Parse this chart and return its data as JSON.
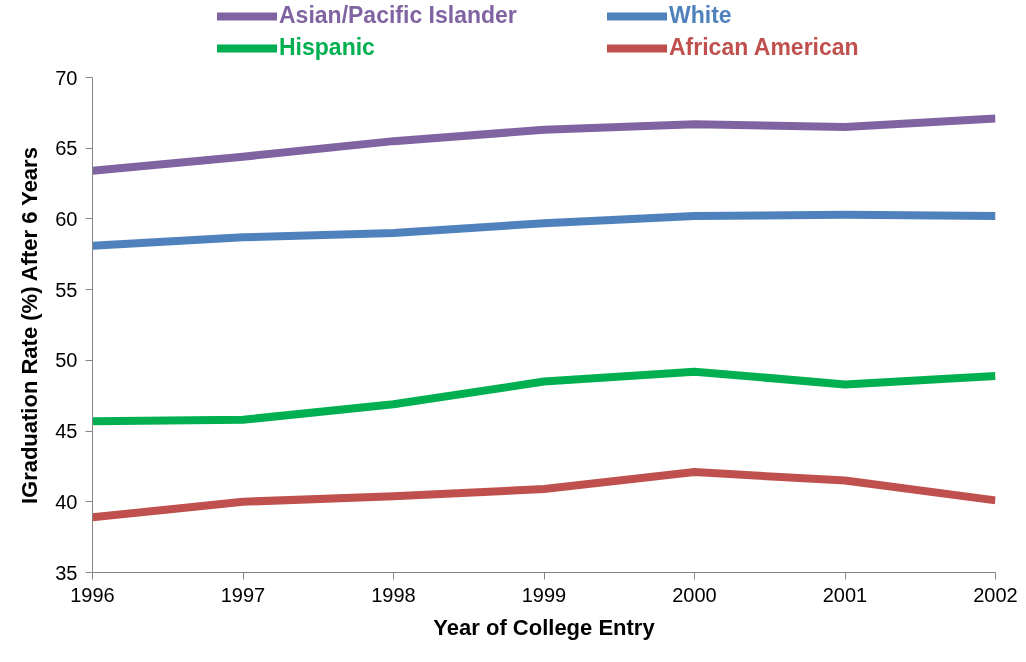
{
  "chart_data": {
    "type": "line",
    "xlabel": "Year of College Entry",
    "ylabel": "IGraduation Rate (%) After 6 Years",
    "x": [
      1996,
      1997,
      1998,
      1999,
      2000,
      2001,
      2002
    ],
    "xlim": [
      1996,
      2002
    ],
    "ylim": [
      35,
      70
    ],
    "xticks": [
      1996,
      1997,
      1998,
      1999,
      2000,
      2001,
      2002
    ],
    "yticks": [
      35,
      40,
      45,
      50,
      55,
      60,
      65,
      70
    ],
    "legend": "top",
    "series": [
      {
        "name": "Asian/Pacific Islander",
        "color": "#8064a2",
        "values": [
          63.4,
          64.4,
          65.5,
          66.3,
          66.7,
          66.5,
          67.1
        ]
      },
      {
        "name": "White",
        "color": "#4f81bd",
        "values": [
          58.1,
          58.7,
          59.0,
          59.7,
          60.2,
          60.3,
          60.2
        ]
      },
      {
        "name": "Hispanic",
        "color": "#00b050",
        "values": [
          45.7,
          45.8,
          46.9,
          48.5,
          49.2,
          48.3,
          48.9
        ]
      },
      {
        "name": "African American",
        "color": "#c0504d",
        "values": [
          38.9,
          40.0,
          40.4,
          40.9,
          42.1,
          41.5,
          40.1
        ]
      }
    ]
  }
}
